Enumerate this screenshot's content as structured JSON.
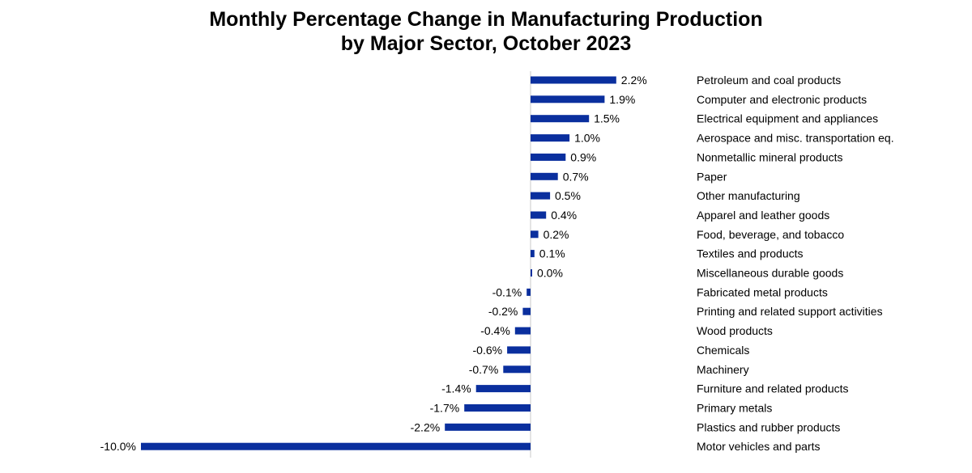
{
  "chart_data": {
    "type": "bar",
    "orientation": "horizontal",
    "title_lines": [
      "Monthly Percentage Change in Manufacturing Production",
      "by Major Sector, October 2023"
    ],
    "categories": [
      "Petroleum and coal products",
      "Computer and electronic products",
      "Electrical equipment and appliances",
      "Aerospace and misc. transportation eq.",
      "Nonmetallic mineral products",
      "Paper",
      "Other manufacturing",
      "Apparel and leather goods",
      "Food, beverage, and tobacco",
      "Textiles and products",
      "Miscellaneous durable goods",
      "Fabricated metal products",
      "Printing and related support activities",
      "Wood products",
      "Chemicals",
      "Machinery",
      "Furniture and related products",
      "Primary metals",
      "Plastics and rubber products",
      "Motor vehicles and parts"
    ],
    "values": [
      2.2,
      1.9,
      1.5,
      1.0,
      0.9,
      0.7,
      0.5,
      0.4,
      0.2,
      0.1,
      0.0,
      -0.1,
      -0.2,
      -0.4,
      -0.6,
      -0.7,
      -1.4,
      -1.7,
      -2.2,
      -10.0
    ],
    "data_labels": [
      "2.2%",
      "1.9%",
      "1.5%",
      "1.0%",
      "0.9%",
      "0.7%",
      "0.5%",
      "0.4%",
      "0.2%",
      "0.1%",
      "0.0%",
      "-0.1%",
      "-0.2%",
      "-0.4%",
      "-0.6%",
      "-0.7%",
      "-1.4%",
      "-1.7%",
      "-2.2%",
      "-10.0%"
    ],
    "xlim": [
      -10.0,
      2.2
    ],
    "bar_color": "#0a2f9e",
    "axis_color": "#c8c8c8",
    "grid": false,
    "legend": "none"
  }
}
